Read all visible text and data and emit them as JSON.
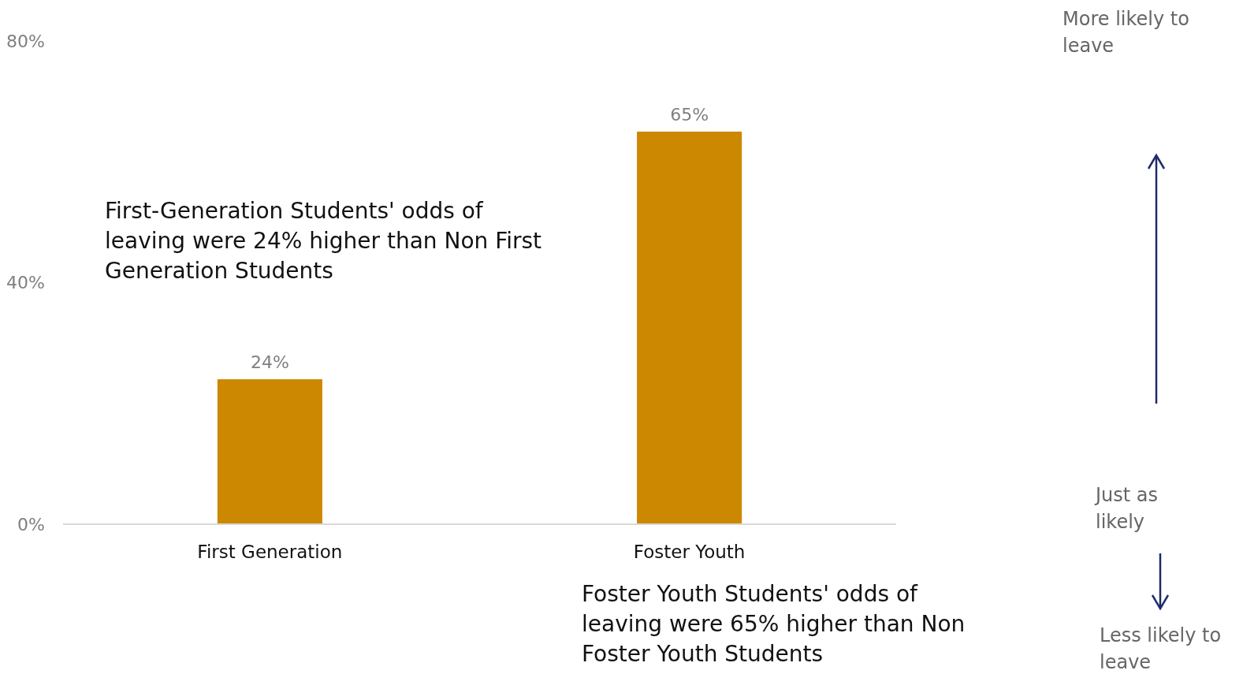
{
  "chart_data": {
    "type": "bar",
    "categories": [
      "First Generation",
      "Foster Youth"
    ],
    "values": [
      24,
      65
    ],
    "color": "#cc8800",
    "ylim": [
      0,
      80
    ],
    "yticks": [
      {
        "value": 0,
        "label": "0%"
      },
      {
        "value": 40,
        "label": "40%"
      },
      {
        "value": 80,
        "label": "80%"
      }
    ],
    "grid": false,
    "value_labels": [
      "24%",
      "65%"
    ],
    "annotations": [
      "First-Generation Students' odds of leaving were 24% higher than Non First Generation Students",
      "Foster Youth Students' odds of leaving were 65% higher than Non Foster Youth Students",
      "More likely to leave",
      "Just as likely",
      "Less likely to leave"
    ]
  }
}
